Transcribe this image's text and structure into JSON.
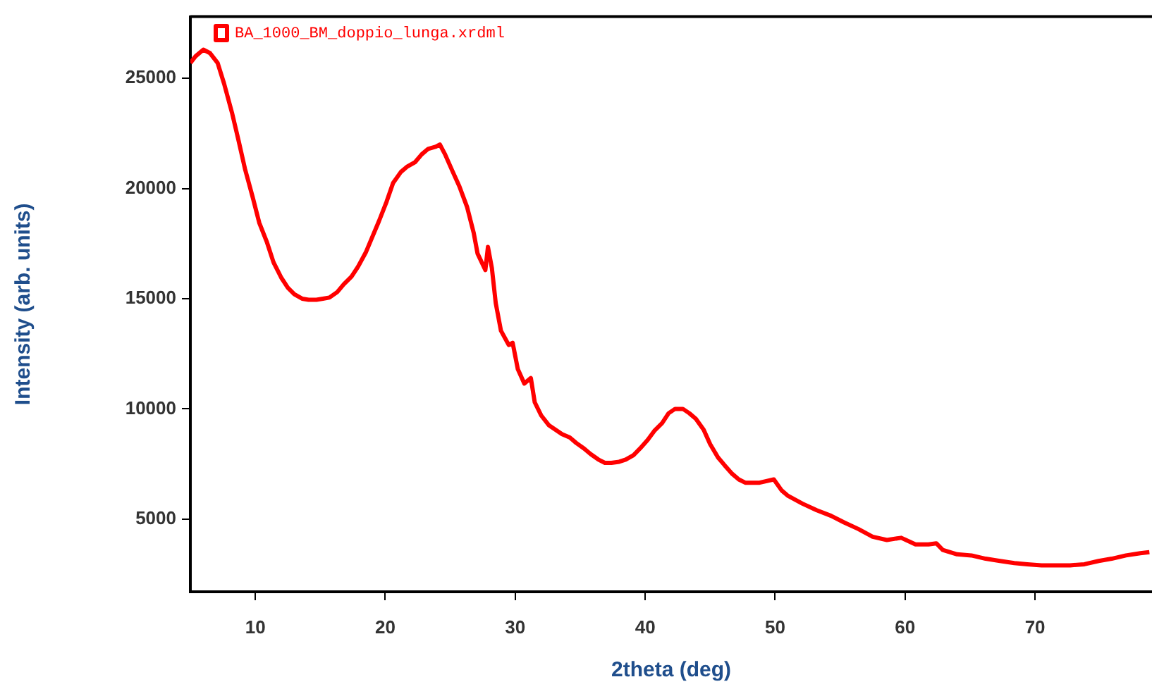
{
  "chart_data": {
    "type": "line",
    "xlabel": "2theta (deg)",
    "ylabel": "Intensity (arb. units)",
    "xlim": [
      5,
      79
    ],
    "xticks": [
      10,
      20,
      30,
      40,
      50,
      60,
      70
    ],
    "ylim": [
      1700,
      27800
    ],
    "yticks": [
      5000,
      10000,
      15000,
      20000,
      25000
    ],
    "grid": false,
    "legend": "top left",
    "marker": "none",
    "line_style": "solid",
    "series": [
      {
        "name": "BA_1000_BM_doppio_lunga.xrdml",
        "color": "#ff0000",
        "x": [
          5.0,
          5.4,
          6.0,
          6.5,
          7.1,
          7.6,
          8.2,
          8.7,
          9.2,
          9.8,
          10.3,
          10.9,
          11.4,
          12.0,
          12.5,
          13.0,
          13.6,
          14.1,
          14.7,
          15.2,
          15.7,
          16.3,
          16.8,
          17.4,
          17.9,
          18.5,
          19.0,
          19.5,
          20.1,
          20.6,
          21.2,
          21.7,
          22.3,
          22.8,
          23.3,
          23.9,
          24.2,
          24.6,
          25.2,
          25.7,
          26.3,
          26.8,
          27.1,
          27.7,
          27.9,
          28.2,
          28.5,
          28.9,
          29.5,
          29.8,
          30.2,
          30.7,
          31.2,
          31.5,
          32.0,
          32.6,
          33.1,
          33.6,
          34.2,
          34.7,
          35.3,
          35.8,
          36.4,
          36.9,
          37.4,
          38.0,
          38.5,
          39.1,
          39.6,
          40.2,
          40.7,
          41.3,
          41.8,
          42.3,
          42.9,
          43.4,
          43.9,
          44.5,
          45.0,
          45.6,
          46.1,
          46.7,
          47.2,
          47.7,
          48.3,
          48.8,
          49.9,
          50.5,
          51.0,
          52.1,
          53.2,
          54.3,
          55.3,
          56.4,
          57.5,
          58.6,
          59.7,
          60.8,
          61.8,
          62.4,
          62.9,
          64.0,
          65.1,
          66.2,
          67.3,
          68.4,
          69.4,
          70.5,
          71.6,
          72.7,
          73.8,
          74.9,
          75.9,
          77.0,
          78.1,
          78.8
        ],
        "values": [
          25700,
          26000,
          26300,
          26150,
          25700,
          24750,
          23450,
          22200,
          20900,
          19600,
          18450,
          17550,
          16650,
          15950,
          15500,
          15200,
          15000,
          14950,
          14950,
          15000,
          15050,
          15300,
          15650,
          16000,
          16450,
          17100,
          17800,
          18500,
          19400,
          20250,
          20750,
          21000,
          21200,
          21550,
          21800,
          21900,
          22000,
          21550,
          20750,
          20100,
          19150,
          18000,
          17050,
          16300,
          17350,
          16400,
          14800,
          13550,
          12900,
          13000,
          11800,
          11150,
          11400,
          10300,
          9700,
          9250,
          9050,
          8850,
          8700,
          8450,
          8200,
          7950,
          7700,
          7550,
          7550,
          7600,
          7700,
          7900,
          8200,
          8600,
          9000,
          9350,
          9800,
          10000,
          10000,
          9800,
          9550,
          9050,
          8400,
          7800,
          7450,
          7050,
          6800,
          6650,
          6650,
          6650,
          6800,
          6300,
          6050,
          5700,
          5400,
          5150,
          4850,
          4550,
          4200,
          4050,
          4150,
          3850,
          3850,
          3900,
          3600,
          3400,
          3350,
          3200,
          3100,
          3000,
          2950,
          2900,
          2900,
          2900,
          2950,
          3100,
          3200,
          3350,
          3450,
          3500
        ]
      }
    ]
  }
}
